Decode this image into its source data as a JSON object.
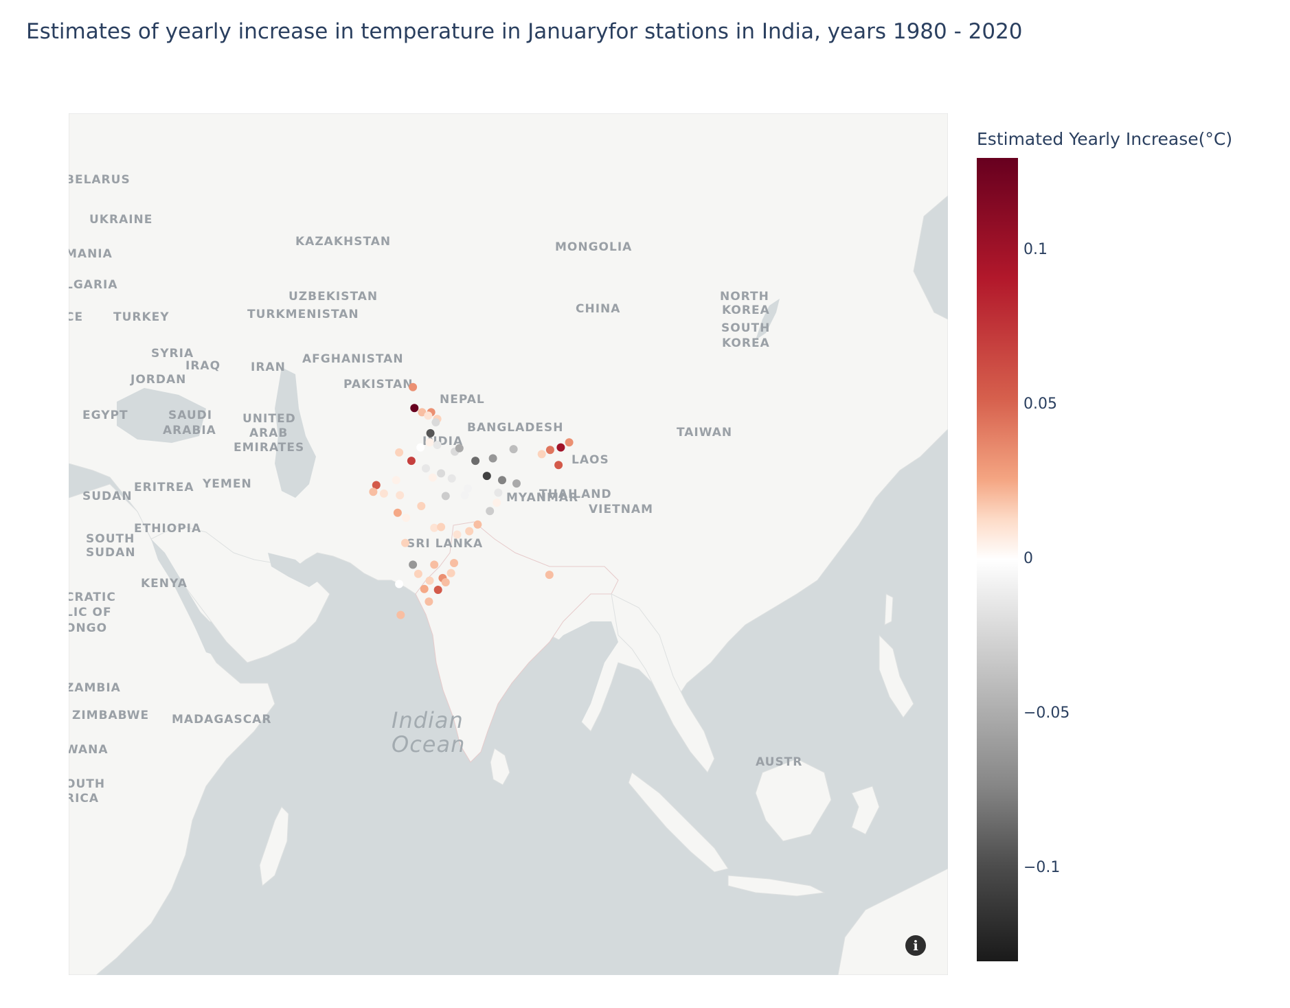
{
  "title": "Estimates of yearly increase in temperature in Januaryfor stations in India, years 1980 - 2020",
  "colorbar": {
    "title": "Estimated Yearly Increase(°C)",
    "min": -0.13,
    "max": 0.13,
    "ticks": [
      {
        "label": "0.1",
        "value": 0.1
      },
      {
        "label": "0.05",
        "value": 0.05
      },
      {
        "label": "0",
        "value": 0
      },
      {
        "label": "−0.05",
        "value": -0.05
      },
      {
        "label": "−0.1",
        "value": -0.1
      }
    ],
    "colors": [
      "#1a1a1a",
      "#4d4d4d",
      "#878787",
      "#bababa",
      "#e0e0e0",
      "#ffffff",
      "#fddbc7",
      "#f4a582",
      "#d6604d",
      "#b2182b",
      "#67001f"
    ]
  },
  "map": {
    "land_color": "#f6f6f4",
    "water_color": "#d4dadc",
    "border_color": "#e8c9c9",
    "country_labels": [
      "BELARUS",
      "UKRAINE",
      "MANIA",
      "LGARIA",
      "CE",
      "TURKEY",
      "SYRIA",
      "IRAQ",
      "JORDAN",
      "IRAN",
      "KAZAKHSTAN",
      "UZBEKISTAN",
      "TURKMENISTAN",
      "AFGHANISTAN",
      "PAKISTAN",
      "EGYPT",
      "SAUDI",
      "ARABIA",
      "UNITED",
      "ARAB",
      "EMIRATES",
      "YEMEN",
      "ERITREA",
      "SUDAN",
      "SOUTH",
      "SUDAN",
      "ETHIOPIA",
      "KENYA",
      "CRATIC",
      "LIC OF",
      "ONGO",
      "ZAMBIA",
      "ZIMBABWE",
      "WANA",
      "OUTH",
      "RICA",
      "MADAGASCAR",
      "NEPAL",
      "INDIA",
      "BANGLADESH",
      "SRI LANKA",
      "MYANMAR",
      "THAILAND",
      "LAOS",
      "VIETNAM",
      "CHINA",
      "MONGOLIA",
      "NORTH",
      "KOREA",
      "SOUTH",
      "KOREA",
      "TAIWAN",
      "AUSTR"
    ],
    "ocean_labels": [
      "Indian",
      "Ocean"
    ]
  },
  "stations": [
    {
      "lon": 74.8,
      "lat": 34.1,
      "value": 0.06
    },
    {
      "lon": 75.0,
      "lat": 31.6,
      "value": 0.13
    },
    {
      "lon": 76.0,
      "lat": 31.1,
      "value": 0.04
    },
    {
      "lon": 77.2,
      "lat": 31.1,
      "value": 0.06
    },
    {
      "lon": 78.0,
      "lat": 30.3,
      "value": 0.03
    },
    {
      "lon": 76.8,
      "lat": 30.7,
      "value": 0.02
    },
    {
      "lon": 77.1,
      "lat": 28.6,
      "value": -0.1
    },
    {
      "lon": 77.8,
      "lat": 29.9,
      "value": -0.03
    },
    {
      "lon": 78.0,
      "lat": 27.2,
      "value": -0.02
    },
    {
      "lon": 80.3,
      "lat": 26.4,
      "value": -0.03
    },
    {
      "lon": 80.9,
      "lat": 26.8,
      "value": -0.06
    },
    {
      "lon": 83.0,
      "lat": 25.3,
      "value": -0.09
    },
    {
      "lon": 85.3,
      "lat": 25.6,
      "value": -0.07
    },
    {
      "lon": 84.5,
      "lat": 23.5,
      "value": -0.11
    },
    {
      "lon": 86.5,
      "lat": 23.0,
      "value": -0.08
    },
    {
      "lon": 88.4,
      "lat": 22.6,
      "value": -0.06
    },
    {
      "lon": 88.0,
      "lat": 26.7,
      "value": -0.05
    },
    {
      "lon": 91.7,
      "lat": 26.1,
      "value": 0.03
    },
    {
      "lon": 92.8,
      "lat": 26.6,
      "value": 0.07
    },
    {
      "lon": 94.2,
      "lat": 26.9,
      "value": 0.11
    },
    {
      "lon": 95.3,
      "lat": 27.5,
      "value": 0.06
    },
    {
      "lon": 93.9,
      "lat": 24.8,
      "value": 0.08
    },
    {
      "lon": 92.7,
      "lat": 11.7,
      "value": 0.04
    },
    {
      "lon": 73.0,
      "lat": 26.3,
      "value": 0.03
    },
    {
      "lon": 72.6,
      "lat": 23.0,
      "value": 0.01
    },
    {
      "lon": 70.0,
      "lat": 22.4,
      "value": 0.08
    },
    {
      "lon": 69.6,
      "lat": 21.6,
      "value": 0.04
    },
    {
      "lon": 71.0,
      "lat": 21.4,
      "value": 0.02
    },
    {
      "lon": 74.6,
      "lat": 25.3,
      "value": 0.09
    },
    {
      "lon": 75.8,
      "lat": 26.9,
      "value": 0.0
    },
    {
      "lon": 76.5,
      "lat": 24.4,
      "value": -0.02
    },
    {
      "lon": 78.5,
      "lat": 23.8,
      "value": -0.03
    },
    {
      "lon": 77.4,
      "lat": 23.3,
      "value": 0.01
    },
    {
      "lon": 79.9,
      "lat": 23.2,
      "value": -0.02
    },
    {
      "lon": 81.6,
      "lat": 21.2,
      "value": -0.01
    },
    {
      "lon": 79.1,
      "lat": 21.1,
      "value": -0.04
    },
    {
      "lon": 73.1,
      "lat": 21.2,
      "value": 0.02
    },
    {
      "lon": 72.8,
      "lat": 19.1,
      "value": 0.05
    },
    {
      "lon": 73.9,
      "lat": 18.5,
      "value": 0.01
    },
    {
      "lon": 75.9,
      "lat": 19.9,
      "value": 0.03
    },
    {
      "lon": 77.6,
      "lat": 17.3,
      "value": 0.02
    },
    {
      "lon": 78.5,
      "lat": 17.4,
      "value": 0.03
    },
    {
      "lon": 80.6,
      "lat": 16.5,
      "value": 0.02
    },
    {
      "lon": 83.3,
      "lat": 17.7,
      "value": 0.04
    },
    {
      "lon": 82.2,
      "lat": 16.9,
      "value": 0.03
    },
    {
      "lon": 84.9,
      "lat": 19.3,
      "value": -0.04
    },
    {
      "lon": 85.8,
      "lat": 20.3,
      "value": 0.01
    },
    {
      "lon": 73.8,
      "lat": 15.5,
      "value": 0.03
    },
    {
      "lon": 74.8,
      "lat": 12.9,
      "value": -0.07
    },
    {
      "lon": 75.5,
      "lat": 11.8,
      "value": 0.03
    },
    {
      "lon": 77.6,
      "lat": 12.9,
      "value": 0.04
    },
    {
      "lon": 78.7,
      "lat": 11.3,
      "value": 0.06
    },
    {
      "lon": 80.2,
      "lat": 13.1,
      "value": 0.04
    },
    {
      "lon": 79.8,
      "lat": 11.9,
      "value": 0.03
    },
    {
      "lon": 76.3,
      "lat": 10.0,
      "value": 0.05
    },
    {
      "lon": 77.0,
      "lat": 11.0,
      "value": 0.03
    },
    {
      "lon": 78.1,
      "lat": 9.9,
      "value": 0.08
    },
    {
      "lon": 79.1,
      "lat": 10.8,
      "value": 0.04
    },
    {
      "lon": 76.9,
      "lat": 8.5,
      "value": 0.04
    },
    {
      "lon": 73.0,
      "lat": 10.6,
      "value": 0.0
    },
    {
      "lon": 73.2,
      "lat": 6.9,
      "value": 0.04
    },
    {
      "lon": 77.0,
      "lat": 27.5,
      "value": 0.01
    },
    {
      "lon": 82.0,
      "lat": 22.0,
      "value": -0.01
    },
    {
      "lon": 86.0,
      "lat": 21.5,
      "value": -0.02
    }
  ]
}
